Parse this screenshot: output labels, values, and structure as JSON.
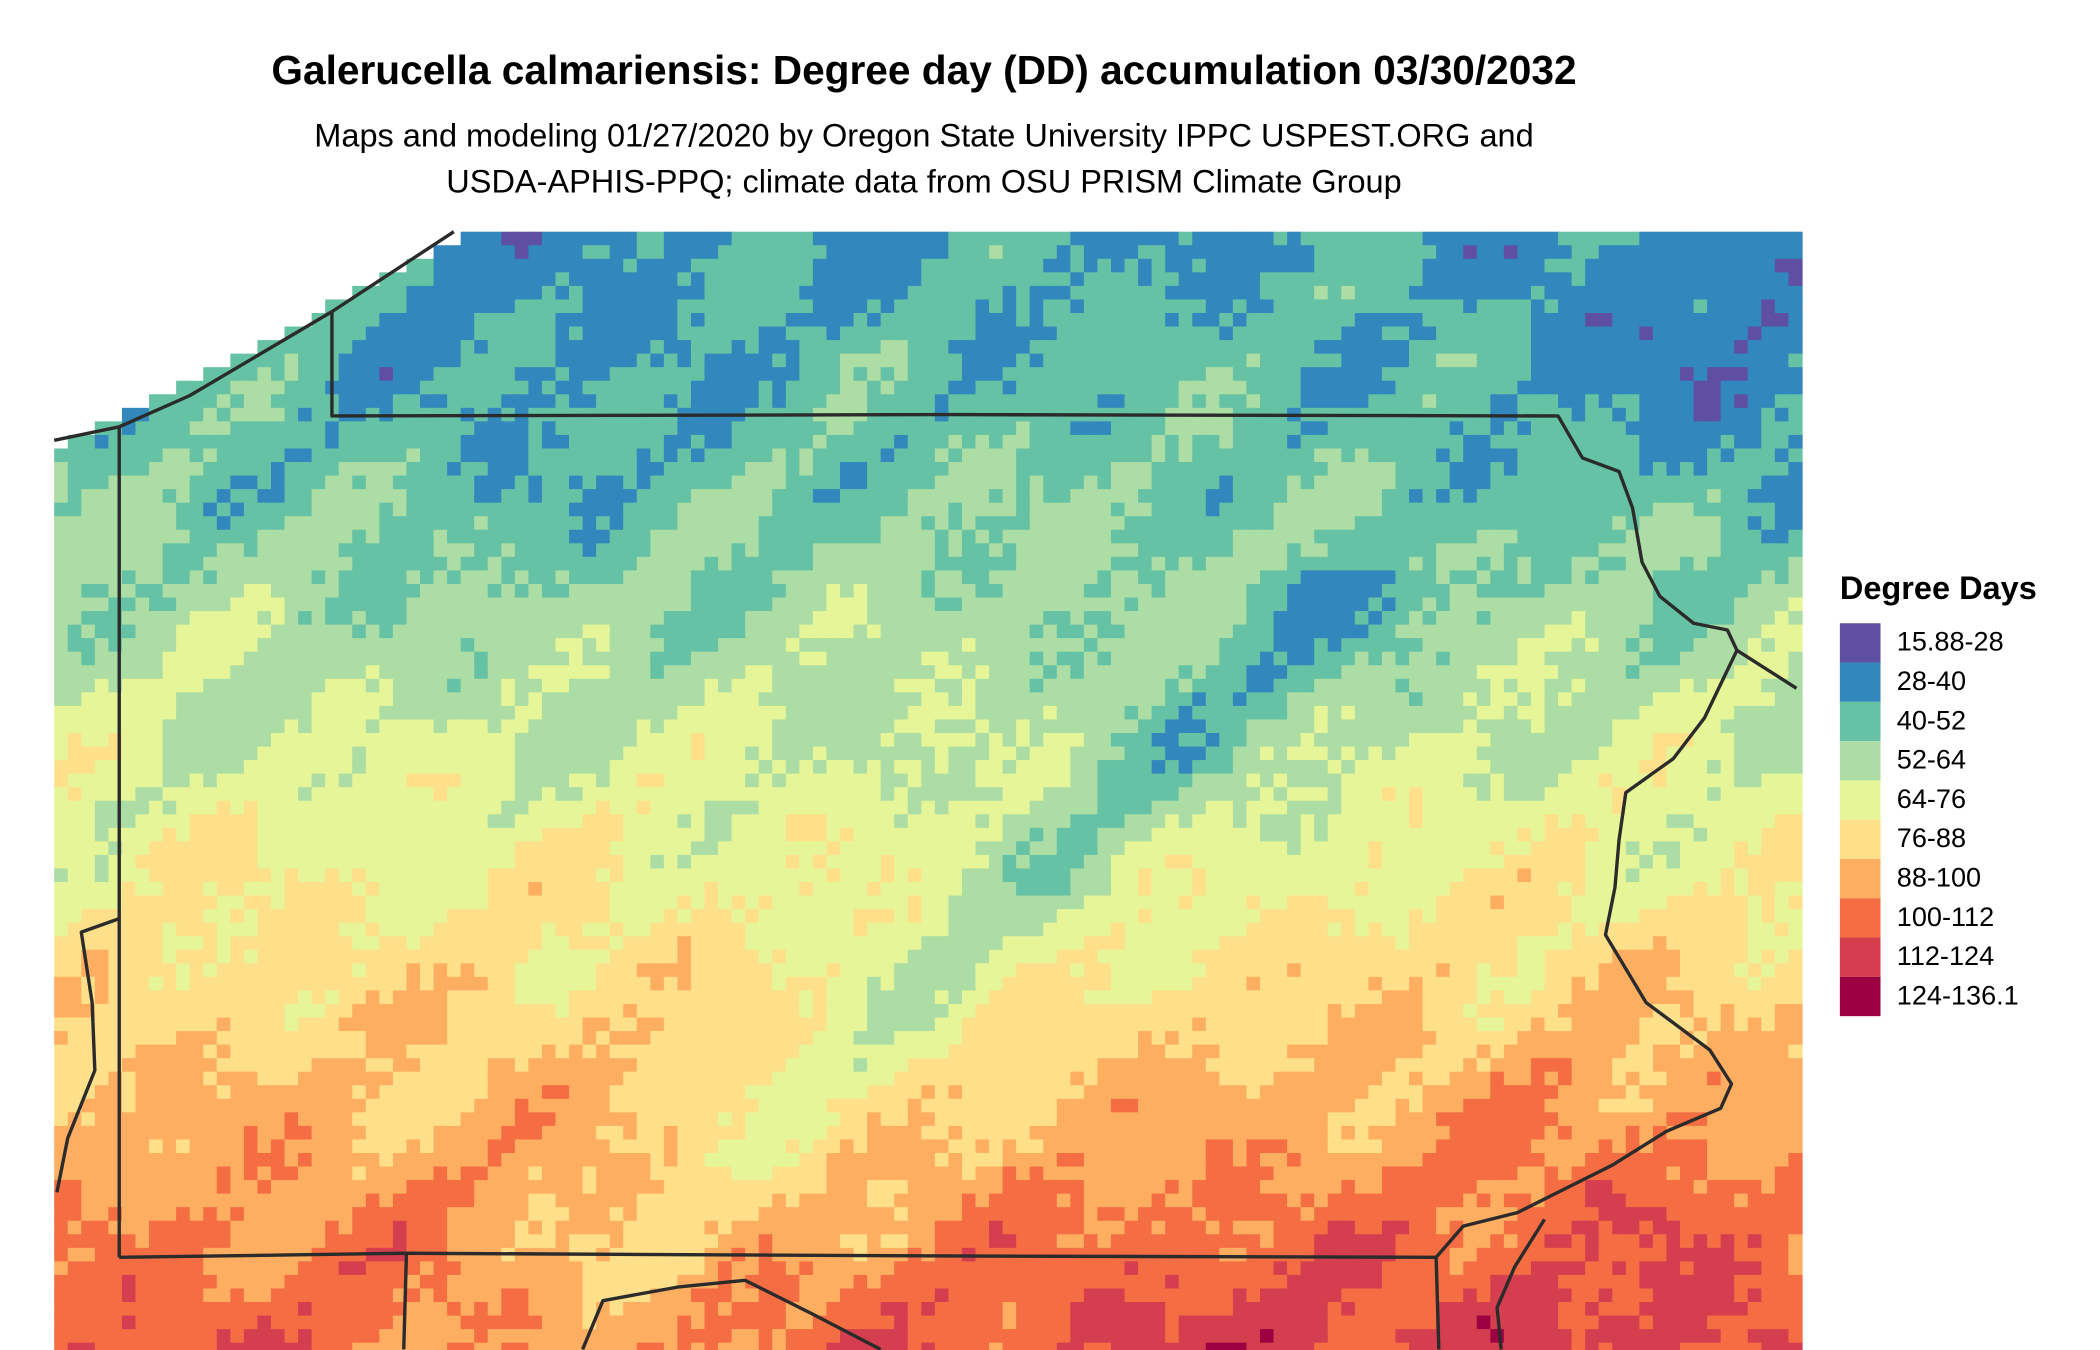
{
  "title": "Galerucella calmariensis: Degree day (DD) accumulation 03/30/2032",
  "subtitle_lines": [
    "Maps and modeling 01/27/2020 by Oregon State University IPPC USPEST.ORG and",
    "USDA-APHIS-PPQ; climate data from OSU PRISM Climate Group"
  ],
  "legend": {
    "title": "Degree Days",
    "entries": [
      {
        "label": "15.88-28",
        "color": "#5E4FA2"
      },
      {
        "label": "28-40",
        "color": "#3288BD"
      },
      {
        "label": "40-52",
        "color": "#66C2A5"
      },
      {
        "label": "52-64",
        "color": "#ABDDA4"
      },
      {
        "label": "64-76",
        "color": "#E6F598"
      },
      {
        "label": "76-88",
        "color": "#FEE08B"
      },
      {
        "label": "88-100",
        "color": "#FDAE61"
      },
      {
        "label": "100-112",
        "color": "#F46D43"
      },
      {
        "label": "112-124",
        "color": "#D53E4F"
      },
      {
        "label": "124-136.1",
        "color": "#9E0142"
      }
    ]
  }
}
